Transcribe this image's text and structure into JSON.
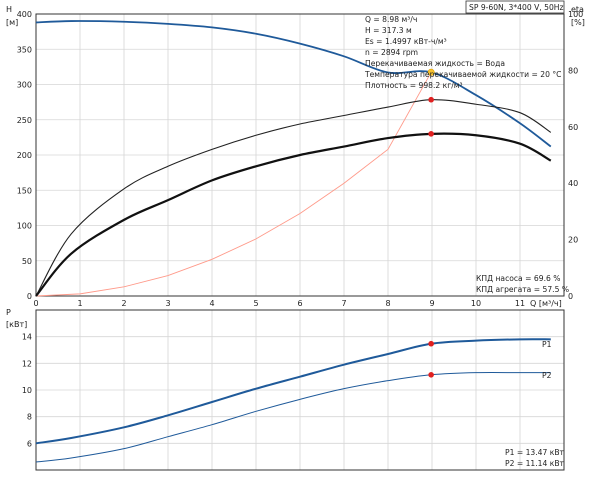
{
  "chart_data": [
    {
      "type": "line",
      "pump_model": "SP 9-60N, 3*400 V, 50Hz",
      "left_axis_label": "H",
      "left_axis_unit": "[м]",
      "right_axis_label": "eta",
      "right_axis_unit": "[%]",
      "xlabel": "Q [м³/ч]",
      "xlim": [
        0,
        12
      ],
      "ylim_left": [
        0,
        400
      ],
      "ylim_right": [
        0,
        100
      ],
      "x_ticks": [
        "0",
        "1",
        "2",
        "3",
        "4",
        "5",
        "6",
        "7",
        "8",
        "9",
        "10",
        "11"
      ],
      "y_ticks_left": [
        "0",
        "50",
        "100",
        "150",
        "200",
        "250",
        "300",
        "350",
        "400"
      ],
      "y_ticks_right": [
        "0",
        "20",
        "40",
        "60",
        "80",
        "100"
      ],
      "info_lines": [
        "Q = 8.98 м³/ч",
        "H = 317.3 м",
        "Es = 1.4997 кВт-ч/м³",
        "n = 2894 rpm",
        "Перекачиваемая жидкость = Вода",
        "Температура перекачиваемой жидкости = 20 °C",
        "Плотность = 998.2 кг/м³"
      ],
      "efficiency_notes": [
        "КПД насоса = 69.6 %",
        "КПД агрегата = 57.5 %"
      ],
      "series": [
        {
          "key": "head",
          "axis": "left",
          "color": "#1f5a9a",
          "x": [
            0,
            0.8,
            2,
            3,
            4,
            5,
            6,
            7,
            8,
            8.98,
            10,
            11,
            11.7
          ],
          "y": [
            388,
            390,
            389,
            386,
            381,
            372,
            358,
            340,
            317,
            317.3,
            285,
            245,
            212
          ]
        },
        {
          "key": "system-curve",
          "axis": "left",
          "color": "#ff9a8a",
          "x": [
            0,
            1,
            2,
            3,
            4,
            5,
            6,
            7,
            8,
            8.98
          ],
          "y": [
            0,
            3,
            13,
            29,
            52,
            81,
            117,
            160,
            208,
            317.3
          ]
        },
        {
          "key": "pump-efficiency",
          "axis": "right",
          "color": "#222222",
          "x": [
            0,
            0.8,
            2,
            3,
            4,
            5,
            6,
            7,
            8,
            8.98,
            10,
            11,
            11.7
          ],
          "y": [
            0,
            22,
            38,
            46,
            52,
            57,
            61,
            64,
            67,
            69.6,
            68,
            65,
            58
          ]
        },
        {
          "key": "unit-efficiency",
          "axis": "right",
          "color": "#111111",
          "x": [
            0,
            0.8,
            2,
            3,
            4,
            5,
            6,
            7,
            8,
            8.98,
            10,
            11,
            11.7
          ],
          "y": [
            0,
            15,
            27,
            34,
            41,
            46,
            50,
            53,
            56,
            57.5,
            57,
            54,
            48
          ]
        }
      ],
      "markers": [
        {
          "key": "duty-point",
          "axis": "left",
          "x": 8.98,
          "y": 317.3,
          "color": "#f6c230"
        },
        {
          "key": "pump-efficiency-point",
          "axis": "right",
          "x": 8.98,
          "y": 69.6,
          "color": "#e02020"
        },
        {
          "key": "unit-efficiency-point",
          "axis": "right",
          "x": 8.98,
          "y": 57.5,
          "color": "#e02020"
        }
      ]
    },
    {
      "type": "line",
      "ylabel": "P",
      "yunit": "[кВт]",
      "xlim": [
        0,
        12
      ],
      "ylim": [
        4,
        16
      ],
      "y_ticks": [
        "6",
        "8",
        "10",
        "12",
        "14"
      ],
      "series": [
        {
          "name": "P1",
          "color": "#1f5a9a",
          "x": [
            0,
            0.8,
            2,
            3,
            4,
            5,
            6,
            7,
            8,
            8.98,
            10,
            11,
            11.7
          ],
          "y": [
            6.0,
            6.4,
            7.2,
            8.1,
            9.1,
            10.1,
            11.0,
            11.9,
            12.7,
            13.47,
            13.7,
            13.8,
            13.8
          ]
        },
        {
          "name": "P2",
          "color": "#1f5a9a",
          "x": [
            0,
            0.8,
            2,
            3,
            4,
            5,
            6,
            7,
            8,
            8.98,
            10,
            11,
            11.7
          ],
          "y": [
            4.6,
            4.9,
            5.6,
            6.5,
            7.4,
            8.4,
            9.3,
            10.1,
            10.7,
            11.14,
            11.3,
            11.3,
            11.3
          ]
        }
      ],
      "markers": [
        {
          "key": "p1-point",
          "x": 8.98,
          "y": 13.47,
          "color": "#e02020"
        },
        {
          "key": "p2-point",
          "x": 8.98,
          "y": 11.14,
          "color": "#e02020"
        }
      ],
      "readouts": [
        "P1 = 13.47 кВт",
        "P2 = 11.14 кВт"
      ]
    }
  ]
}
